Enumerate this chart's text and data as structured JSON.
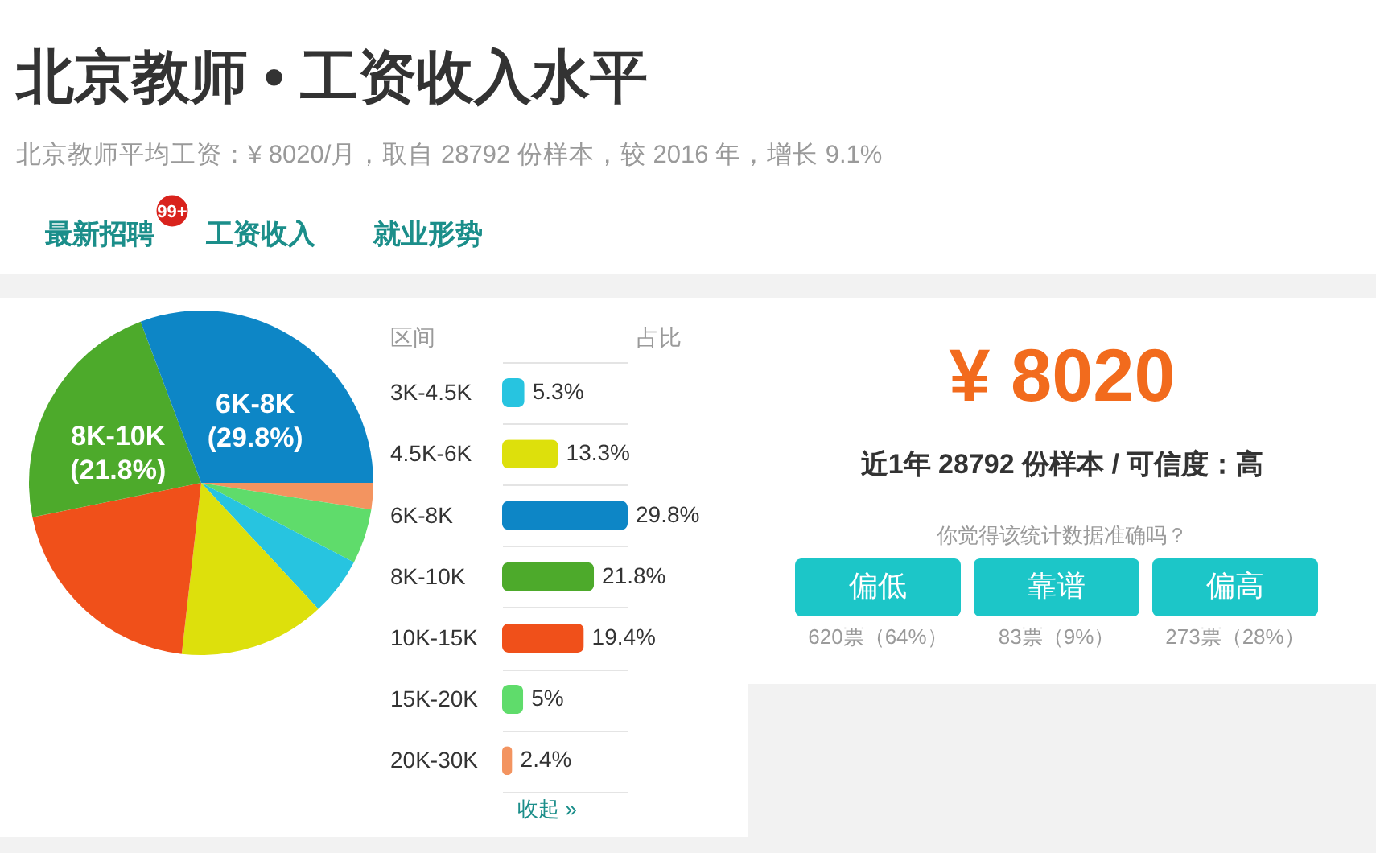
{
  "chart_data": [
    {
      "type": "other",
      "title": "北京教师 • 工资收入水平",
      "subtitle": "北京教师平均工资：¥ 8020/月，取自 28792 份样本，较 2016 年，增长 9.1%",
      "annotations": [
        "最新招聘",
        "99+",
        "工资收入",
        "就业形势"
      ]
    },
    {
      "type": "pie",
      "categories": [
        null,
        null,
        null,
        null,
        null,
        "8K-10K",
        "6K-8K"
      ],
      "values": [
        2.4,
        5,
        5.3,
        13.3,
        19.4,
        21.8,
        29.8
      ],
      "colors": [
        "#f39460",
        "#5fdc6b",
        "#27c4e0",
        "#dde00c",
        "#f0501a",
        "#4daa2b",
        "#0d86c6"
      ],
      "value_labels": [
        null,
        null,
        null,
        null,
        null,
        "(21.8%)",
        "(29.8%)"
      ]
    },
    {
      "type": "bar",
      "orientation": "horizontal",
      "xlabel": "占比",
      "ylabel": "区间",
      "categories": [
        "3K-4.5K",
        "4.5K-6K",
        "6K-8K",
        "8K-10K",
        "10K-15K",
        "15K-20K",
        "20K-30K"
      ],
      "values": [
        5.3,
        13.3,
        29.8,
        21.8,
        19.4,
        5,
        2.4
      ],
      "colors": [
        "#27c4e0",
        "#dde00c",
        "#0d86c6",
        "#4daa2b",
        "#f0501a",
        "#5fdc6b",
        "#f39460"
      ],
      "value_labels": [
        "5.3%",
        "13.3%",
        "29.8%",
        "21.8%",
        "19.4%",
        "5%",
        "2.4%"
      ],
      "tick_labels": "y",
      "grid": "y",
      "annotations": [
        "收起 »"
      ]
    },
    {
      "type": "other",
      "title": "¥ 8020",
      "subtitle": "近1年 28792 份样本 / 可信度：高",
      "annotations": [
        "你觉得该统计数据准确吗？",
        "偏低",
        "靠谱",
        "偏高",
        "620票（64%）",
        "83票（9%）",
        "273票（28%）"
      ]
    }
  ]
}
